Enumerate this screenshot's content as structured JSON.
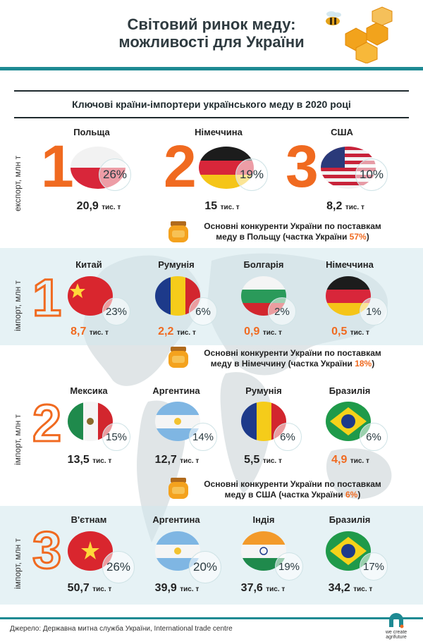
{
  "header": {
    "title_line1": "Світовий ринок меду:",
    "title_line2": "можливості для України"
  },
  "hero": {
    "subtitle": "Ключові країни-імпортери українського меду в 2020 році",
    "side_label": "експорт, млн т",
    "items": [
      {
        "rank": "1",
        "country": "Польща",
        "pct": "26%",
        "value": "20,9",
        "unit": "тис. т",
        "flag": "poland"
      },
      {
        "rank": "2",
        "country": "Німеччина",
        "pct": "19%",
        "value": "15",
        "unit": "тис. т",
        "flag": "germany"
      },
      {
        "rank": "3",
        "country": "США",
        "pct": "10%",
        "value": "8,2",
        "unit": "тис. т",
        "flag": "usa"
      }
    ]
  },
  "sections": [
    {
      "heading_line1": "Основні конкуренти України по поставкам",
      "heading_line2_prefix": "меду в Польщу (частка України ",
      "heading_share": "57%",
      "heading_suffix": ")",
      "side_label": "імпорт, млн т",
      "rank": "1",
      "items": [
        {
          "country": "Китай",
          "pct": "23%",
          "value": "8,7",
          "unit": "тис. т",
          "flag": "china"
        },
        {
          "country": "Румунія",
          "pct": "6%",
          "value": "2,2",
          "unit": "тис. т",
          "flag": "romania"
        },
        {
          "country": "Болгарія",
          "pct": "2%",
          "value": "0,9",
          "unit": "тис. т",
          "flag": "bulgaria"
        },
        {
          "country": "Німеччина",
          "pct": "1%",
          "value": "0,5",
          "unit": "тис. т",
          "flag": "germany"
        }
      ]
    },
    {
      "heading_line1": "Основні конкуренти України по поставкам",
      "heading_line2_prefix": "меду в Німеччину (частка України ",
      "heading_share": "18%",
      "heading_suffix": ")",
      "side_label": "імпорт, млн т",
      "rank": "2",
      "items": [
        {
          "country": "Мексика",
          "pct": "15%",
          "value": "13,5",
          "unit": "тис. т",
          "flag": "mexico"
        },
        {
          "country": "Аргентина",
          "pct": "14%",
          "value": "12,7",
          "unit": "тис. т",
          "flag": "argentina"
        },
        {
          "country": "Румунія",
          "pct": "6%",
          "value": "5,5",
          "unit": "тис. т",
          "flag": "romania"
        },
        {
          "country": "Бразилія",
          "pct": "6%",
          "value": "4,9",
          "unit": "тис. т",
          "flag": "brazil"
        }
      ]
    },
    {
      "heading_line1": "Основні конкуренти України по поставкам",
      "heading_line2_prefix": "меду в США (частка України ",
      "heading_share": "6%",
      "heading_suffix": ")",
      "side_label": "імпорт, млн т",
      "rank": "3",
      "items": [
        {
          "country": "В'єтнам",
          "pct": "26%",
          "value": "50,7",
          "unit": "тис. т",
          "flag": "vietnam"
        },
        {
          "country": "Аргентина",
          "pct": "20%",
          "value": "39,9",
          "unit": "тис. т",
          "flag": "argentina"
        },
        {
          "country": "Індія",
          "pct": "19%",
          "value": "37,6",
          "unit": "тис. т",
          "flag": "india"
        },
        {
          "country": "Бразилія",
          "pct": "17%",
          "value": "34,2",
          "unit": "тис. т",
          "flag": "brazil"
        }
      ]
    }
  ],
  "footer": {
    "source": "Джерело: Державна митна служба України, International trade centre",
    "brand": "we create agrifuture"
  },
  "colors": {
    "accent": "#f06a20",
    "teal": "#1e8a93",
    "band": "#d2e8ec"
  }
}
